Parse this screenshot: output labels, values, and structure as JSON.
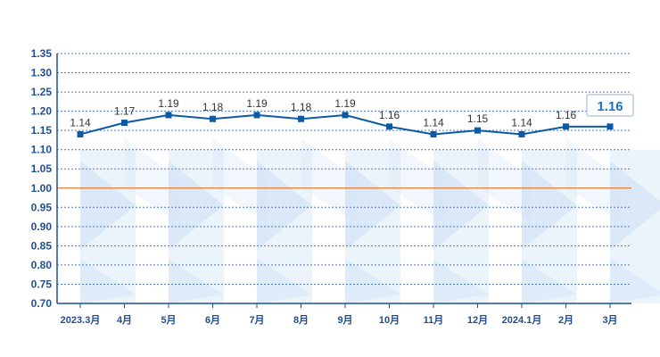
{
  "chart_data": {
    "type": "line",
    "categories": [
      "2023.3月",
      "4月",
      "5月",
      "6月",
      "7月",
      "8月",
      "9月",
      "10月",
      "11月",
      "12月",
      "2024.1月",
      "2月",
      "3月"
    ],
    "series": [
      {
        "values": [
          1.14,
          1.17,
          1.19,
          1.18,
          1.19,
          1.18,
          1.19,
          1.16,
          1.14,
          1.15,
          1.14,
          1.16,
          1.16
        ]
      }
    ],
    "data_labels": [
      "1.14",
      "1.17",
      "1.19",
      "1.18",
      "1.19",
      "1.18",
      "1.19",
      "1.16",
      "1.14",
      "1.15",
      "1.14",
      "1.16",
      ""
    ],
    "yticks": [
      "0.70",
      "0.75",
      "0.80",
      "0.85",
      "0.90",
      "0.95",
      "1.00",
      "1.05",
      "1.10",
      "1.15",
      "1.20",
      "1.25",
      "1.30",
      "1.35"
    ],
    "ylim": [
      0.7,
      1.35
    ],
    "reference_line": 1.0,
    "callout": "1.16",
    "grid": true,
    "colors": {
      "line": "#0b5aa8",
      "marker": "#0b5aa8",
      "grid": "#4f7fc0",
      "axis": "#1f4f8f",
      "reference": "#e07b2a",
      "band": "#dbe9f8",
      "callout_border": "#b8cbe0"
    }
  }
}
